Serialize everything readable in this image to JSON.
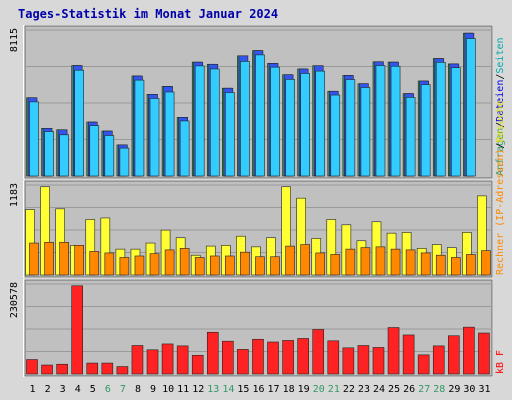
{
  "colors": {
    "page_bg": "#d8d8d8",
    "plot_bg": "#c0c0c0",
    "grid": "#9a9a9a",
    "title": "#0000aa",
    "weekday_label": "#000000",
    "weekend_label": "#339966",
    "requests_label": "#339966",
    "files_label": "#0000dd",
    "pages_label": "#00aaaa",
    "visits_label": "#ff8800",
    "hosts_label": "#dddd00",
    "kb_label": "#ff0000",
    "requests_bar": "#339966",
    "files_bar": "#3355ee",
    "pages_bar": "#33ccff",
    "visits_bar": "#ffff33",
    "hosts_bar": "#ff8800",
    "kb_bar": "#ff2222"
  },
  "chart_data": {
    "type": "bar",
    "title": "Tages-Statistik im Monat Januar 2024",
    "categories": [
      "1",
      "2",
      "3",
      "4",
      "5",
      "6",
      "7",
      "8",
      "9",
      "10",
      "11",
      "12",
      "13",
      "14",
      "15",
      "16",
      "17",
      "18",
      "19",
      "20",
      "21",
      "22",
      "23",
      "24",
      "25",
      "26",
      "27",
      "28",
      "29",
      "30",
      "31"
    ],
    "weekend_days": [
      "6",
      "7",
      "13",
      "14",
      "20",
      "21",
      "27",
      "28"
    ],
    "panels": [
      {
        "id": "requests",
        "ymax_label": "8115",
        "ylim": [
          0,
          8115
        ],
        "grid": true,
        "legend": [
          {
            "text": "Anfragen",
            "color_key": "requests_label"
          },
          {
            "text": "/",
            "color_key": "weekday_label"
          },
          {
            "text": "Dateien",
            "color_key": "files_label"
          },
          {
            "text": "/",
            "color_key": "weekday_label"
          },
          {
            "text": "Seiten",
            "color_key": "pages_label"
          }
        ],
        "series": [
          {
            "name": "Anfragen",
            "color_key": "requests_bar",
            "values": [
              4350,
              2650,
              2570,
              6140,
              3000,
              2500,
              1730,
              5560,
              4540,
              4980,
              3260,
              6330,
              6210,
              4880,
              6680,
              6970,
              6260,
              5630,
              5950,
              6130,
              4710,
              5590,
              5130,
              6350,
              6330,
              4580,
              5280,
              6530,
              6230,
              7940,
              0
            ]
          },
          {
            "name": "Dateien",
            "color_key": "files_bar",
            "values": [
              4350,
              2650,
              2570,
              6140,
              3000,
              2500,
              1730,
              5560,
              4540,
              4980,
              3260,
              6330,
              6210,
              4880,
              6680,
              6970,
              6260,
              5630,
              5950,
              6130,
              4710,
              5590,
              5130,
              6350,
              6330,
              4580,
              5280,
              6530,
              6230,
              7940,
              0
            ]
          },
          {
            "name": "Seiten",
            "color_key": "pages_bar",
            "values": [
              4120,
              2470,
              2290,
              5880,
              2800,
              2250,
              1550,
              5330,
              4310,
              4670,
              3060,
              6120,
              5950,
              4640,
              6370,
              6730,
              6050,
              5370,
              5700,
              5830,
              4500,
              5360,
              4920,
              6140,
              6100,
              4370,
              5080,
              6320,
              6020,
              7640,
              0
            ]
          }
        ]
      },
      {
        "id": "visits",
        "ymax_label": "1183",
        "ylim": [
          0,
          1183
        ],
        "grid": true,
        "legend": [
          {
            "text": "Rechner (IP-Adressen)",
            "color_key": "visits_label"
          },
          {
            "text": "/",
            "color_key": "weekday_label"
          },
          {
            "text": "Besuche",
            "color_key": "hosts_label"
          }
        ],
        "series": [
          {
            "name": "Besuche",
            "color_key": "visits_bar",
            "values": [
              860,
              1160,
              870,
              390,
              730,
              750,
              340,
              340,
              420,
              590,
              490,
              260,
              380,
              390,
              510,
              370,
              490,
              1160,
              1010,
              480,
              730,
              660,
              450,
              700,
              550,
              560,
              350,
              400,
              360,
              560,
              1040
            ]
          },
          {
            "name": "Rechner (IP-Adressen)",
            "color_key": "hosts_bar",
            "values": [
              420,
              430,
              430,
              390,
              310,
              290,
              230,
              250,
              280,
              330,
              350,
              230,
              250,
              250,
              300,
              240,
              240,
              380,
              400,
              290,
              270,
              340,
              360,
              370,
              340,
              330,
              290,
              260,
              230,
              270,
              320
            ]
          }
        ]
      },
      {
        "id": "kb",
        "ymax_label": "230578",
        "ylim": [
          0,
          230578
        ],
        "grid": true,
        "legend": [
          {
            "text": "kB F",
            "color_key": "kb_label"
          }
        ],
        "series": [
          {
            "name": "kB F",
            "color_key": "kb_bar",
            "values": [
              37000,
              23000,
              25000,
              226000,
              28000,
              28000,
              19000,
              73000,
              62000,
              77000,
              72000,
              48000,
              107000,
              84000,
              63000,
              89000,
              82000,
              86000,
              91000,
              114000,
              85000,
              67000,
              73000,
              68000,
              119000,
              100000,
              49000,
              72000,
              98000,
              120000,
              105000
            ]
          }
        ]
      }
    ]
  }
}
